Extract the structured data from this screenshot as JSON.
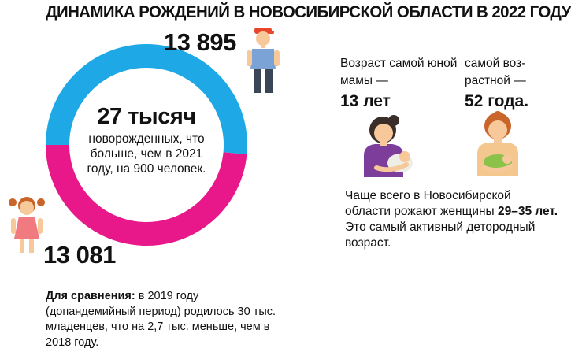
{
  "title": "ДИНАМИКА РОЖДЕНИЙ В НОВОСИБИРСКОЙ ОБЛАСТИ В 2022 ГОДУ",
  "chart_data": {
    "type": "pie",
    "variant": "donut",
    "categories": [
      "Мальчики",
      "Девочки"
    ],
    "values": [
      13895,
      13081
    ],
    "value_labels": [
      "13 895",
      "13 081"
    ],
    "colors": [
      "#1EA9E6",
      "#E8188A"
    ],
    "legend": "none",
    "grid": false
  },
  "total": {
    "value": "27 тысяч",
    "text": "новорожденных, что больше, чем в 2021 году, на 900 человек."
  },
  "youngest_mother": {
    "label": "Возраст самой юной мамы —",
    "value": "13 лет"
  },
  "oldest_mother": {
    "label": "самой воз-растной —",
    "value": "52 года."
  },
  "age_info": {
    "text_before": "Чаще всего в Новосибирской области рожают женщины ",
    "bold": "29–35 лет.",
    "text_after": " Это самый активный детородный возраст."
  },
  "comparison": {
    "bold": "Для сравнения:",
    "text": " в 2019 году (допандемийный период) родилось 30 тыс. младенцев, что на 2,7 тыс. меньше, чем в 2018 году."
  },
  "icons": {
    "boy": "boy-icon",
    "girl": "girl-icon",
    "young_mother": "young-mother-icon",
    "older_mother": "older-mother-icon"
  }
}
